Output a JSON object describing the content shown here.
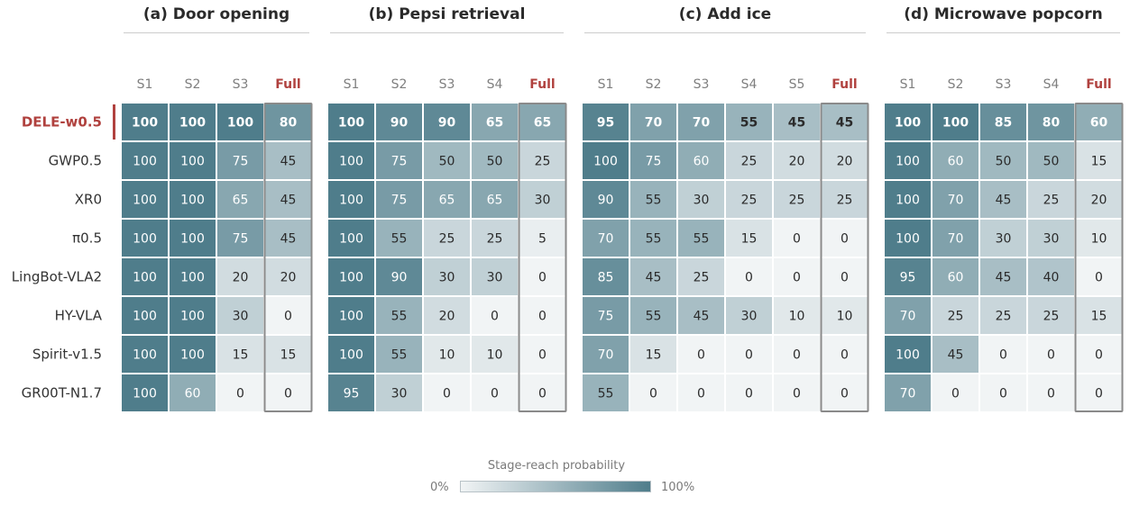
{
  "chart_data": {
    "type": "heatmap",
    "colorbar": {
      "title": "Stage-reach probability",
      "min_label": "0%",
      "max_label": "100%"
    },
    "highlight_color": "#b0413e",
    "low_color": "#f1f4f5",
    "high_color": "#4f7d8b",
    "rows": [
      "DELE-w0.5",
      "GWP0.5",
      "XR0",
      "π0.5",
      "LingBot-VLA2",
      "HY-VLA",
      "Spirit-v1.5",
      "GR00T-N1.7"
    ],
    "highlight_row": "DELE-w0.5",
    "panels": [
      {
        "title": "(a) Door opening",
        "columns": [
          "S1",
          "S2",
          "S3",
          "Full"
        ],
        "values": [
          [
            100,
            100,
            100,
            80
          ],
          [
            100,
            100,
            75,
            45
          ],
          [
            100,
            100,
            65,
            45
          ],
          [
            100,
            100,
            75,
            45
          ],
          [
            100,
            100,
            20,
            20
          ],
          [
            100,
            100,
            30,
            0
          ],
          [
            100,
            100,
            15,
            15
          ],
          [
            100,
            60,
            0,
            0
          ]
        ]
      },
      {
        "title": "(b) Pepsi retrieval",
        "columns": [
          "S1",
          "S2",
          "S3",
          "S4",
          "Full"
        ],
        "values": [
          [
            100,
            90,
            90,
            65,
            65
          ],
          [
            100,
            75,
            50,
            50,
            25
          ],
          [
            100,
            75,
            65,
            65,
            30
          ],
          [
            100,
            55,
            25,
            25,
            5
          ],
          [
            100,
            90,
            30,
            30,
            0
          ],
          [
            100,
            55,
            20,
            0,
            0
          ],
          [
            100,
            55,
            10,
            10,
            0
          ],
          [
            95,
            30,
            0,
            0,
            0
          ]
        ]
      },
      {
        "title": "(c) Add ice",
        "columns": [
          "S1",
          "S2",
          "S3",
          "S4",
          "S5",
          "Full"
        ],
        "values": [
          [
            95,
            70,
            70,
            55,
            45,
            45
          ],
          [
            100,
            75,
            60,
            25,
            20,
            20
          ],
          [
            90,
            55,
            30,
            25,
            25,
            25
          ],
          [
            70,
            55,
            55,
            15,
            0,
            0
          ],
          [
            85,
            45,
            25,
            0,
            0,
            0
          ],
          [
            75,
            55,
            45,
            30,
            10,
            10
          ],
          [
            70,
            15,
            0,
            0,
            0,
            0
          ],
          [
            55,
            0,
            0,
            0,
            0,
            0
          ]
        ]
      },
      {
        "title": "(d) Microwave popcorn",
        "columns": [
          "S1",
          "S2",
          "S3",
          "S4",
          "Full"
        ],
        "values": [
          [
            100,
            100,
            85,
            80,
            60
          ],
          [
            100,
            60,
            50,
            50,
            15
          ],
          [
            100,
            70,
            45,
            25,
            20
          ],
          [
            100,
            70,
            30,
            30,
            10
          ],
          [
            95,
            60,
            45,
            40,
            0
          ],
          [
            70,
            25,
            25,
            25,
            15
          ],
          [
            100,
            45,
            0,
            0,
            0
          ],
          [
            70,
            0,
            0,
            0,
            0
          ]
        ]
      }
    ]
  }
}
